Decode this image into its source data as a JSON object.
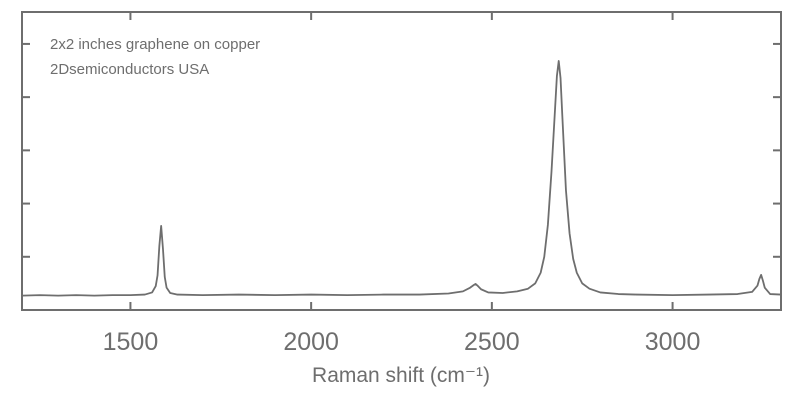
{
  "chart_data": {
    "type": "line",
    "annotations": [
      "2x2 inches graphene on copper",
      "2Dsemiconductors USA"
    ],
    "xlabel": "Raman shift (cm⁻¹)",
    "color": "#6e6e6e",
    "xlim": [
      1200,
      3300
    ],
    "xticks": [
      1500,
      2000,
      2500,
      3000
    ],
    "ylim": [
      0,
      5.6
    ],
    "yticks": [
      1,
      2,
      3,
      4,
      5
    ],
    "x": [
      1200,
      1250,
      1300,
      1350,
      1400,
      1450,
      1500,
      1540,
      1560,
      1570,
      1575,
      1580,
      1585,
      1590,
      1595,
      1600,
      1610,
      1630,
      1700,
      1800,
      1900,
      2000,
      2100,
      2200,
      2300,
      2380,
      2420,
      2440,
      2450,
      2455,
      2460,
      2470,
      2490,
      2530,
      2570,
      2600,
      2620,
      2635,
      2645,
      2655,
      2665,
      2675,
      2680,
      2685,
      2690,
      2695,
      2705,
      2715,
      2725,
      2735,
      2750,
      2770,
      2800,
      2850,
      2900,
      3000,
      3100,
      3180,
      3220,
      3235,
      3240,
      3245,
      3250,
      3255,
      3270,
      3300
    ],
    "values": [
      0.27,
      0.28,
      0.27,
      0.28,
      0.27,
      0.28,
      0.28,
      0.29,
      0.33,
      0.45,
      0.65,
      1.2,
      1.58,
      1.15,
      0.62,
      0.42,
      0.32,
      0.29,
      0.28,
      0.29,
      0.28,
      0.29,
      0.28,
      0.29,
      0.29,
      0.31,
      0.35,
      0.42,
      0.47,
      0.49,
      0.46,
      0.39,
      0.33,
      0.32,
      0.35,
      0.4,
      0.5,
      0.7,
      1.0,
      1.6,
      2.6,
      3.8,
      4.4,
      4.68,
      4.36,
      3.64,
      2.25,
      1.44,
      0.96,
      0.7,
      0.5,
      0.4,
      0.33,
      0.3,
      0.29,
      0.28,
      0.29,
      0.3,
      0.34,
      0.46,
      0.58,
      0.66,
      0.55,
      0.42,
      0.3,
      0.29
    ]
  }
}
